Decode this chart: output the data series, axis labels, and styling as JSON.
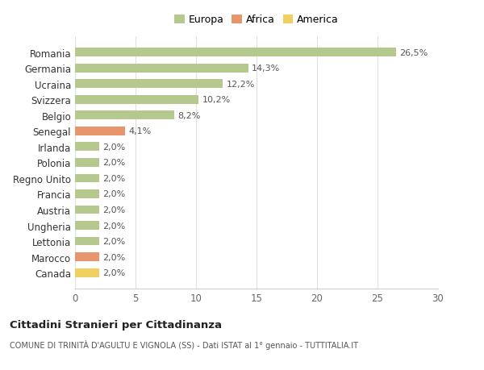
{
  "categories": [
    "Canada",
    "Marocco",
    "Lettonia",
    "Ungheria",
    "Austria",
    "Francia",
    "Regno Unito",
    "Polonia",
    "Irlanda",
    "Senegal",
    "Belgio",
    "Svizzera",
    "Ucraina",
    "Germania",
    "Romania"
  ],
  "values": [
    2.0,
    2.0,
    2.0,
    2.0,
    2.0,
    2.0,
    2.0,
    2.0,
    2.0,
    4.1,
    8.2,
    10.2,
    12.2,
    14.3,
    26.5
  ],
  "labels": [
    "2,0%",
    "2,0%",
    "2,0%",
    "2,0%",
    "2,0%",
    "2,0%",
    "2,0%",
    "2,0%",
    "2,0%",
    "4,1%",
    "8,2%",
    "10,2%",
    "12,2%",
    "14,3%",
    "26,5%"
  ],
  "colors": [
    "#f0d060",
    "#e8956d",
    "#b5c98e",
    "#b5c98e",
    "#b5c98e",
    "#b5c98e",
    "#b5c98e",
    "#b5c98e",
    "#b5c98e",
    "#e8956d",
    "#b5c98e",
    "#b5c98e",
    "#b5c98e",
    "#b5c98e",
    "#b5c98e"
  ],
  "legend_labels": [
    "Europa",
    "Africa",
    "America"
  ],
  "legend_colors": [
    "#b5c98e",
    "#e8956d",
    "#f0d060"
  ],
  "xlim": [
    0,
    30
  ],
  "xticks": [
    0,
    5,
    10,
    15,
    20,
    25,
    30
  ],
  "title1": "Cittadini Stranieri per Cittadinanza",
  "title2": "COMUNE DI TRINITÀ D'AGULTU E VIGNOLA (SS) - Dati ISTAT al 1° gennaio - TUTTITALIA.IT",
  "bg_color": "#ffffff",
  "grid_color": "#e0e0e0"
}
